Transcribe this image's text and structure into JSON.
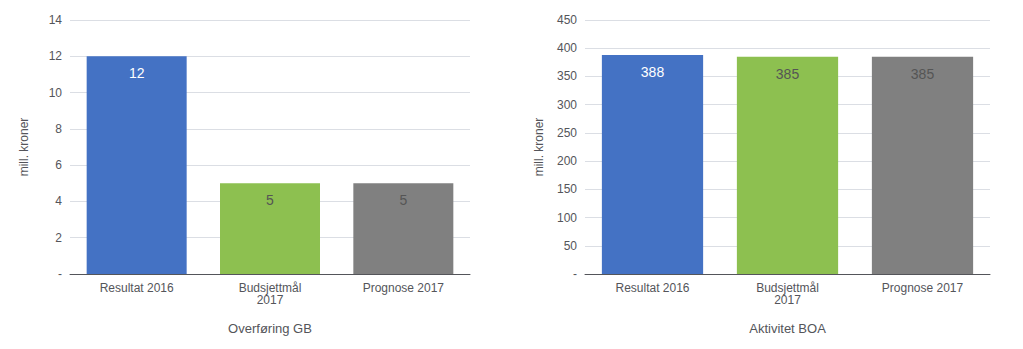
{
  "chart_data": [
    {
      "type": "bar",
      "categories": [
        "Resultat 2016",
        "Budsjettmål\n2017",
        "Prognose 2017"
      ],
      "values": [
        12,
        5,
        5
      ],
      "colors": [
        "#4472C4",
        "#8DC050",
        "#808080"
      ],
      "ylabel": "mill. kroner",
      "xlabel": "Overføring GB",
      "ylim": [
        0,
        14
      ],
      "yticks": [
        {
          "value": 0,
          "label": "-"
        },
        2,
        4,
        6,
        8,
        10,
        12,
        14
      ],
      "grid": true,
      "data_labels": true
    },
    {
      "type": "bar",
      "categories": [
        "Resultat 2016",
        "Budsjettmål\n2017",
        "Prognose 2017"
      ],
      "values": [
        388,
        385,
        385
      ],
      "colors": [
        "#4472C4",
        "#8DC050",
        "#808080"
      ],
      "ylabel": "mill. kroner",
      "xlabel": "Aktivitet BOA",
      "ylim": [
        0,
        450
      ],
      "yticks": [
        {
          "value": 0,
          "label": "-"
        },
        50,
        100,
        150,
        200,
        250,
        300,
        350,
        400,
        450
      ],
      "grid": true,
      "data_labels": true
    }
  ]
}
